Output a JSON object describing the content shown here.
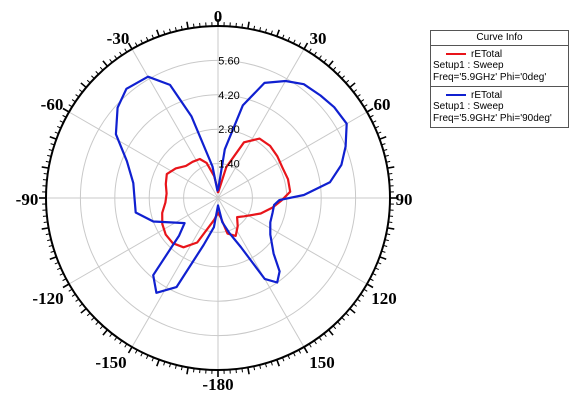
{
  "colors": {
    "series_1": "#e8141a",
    "series_2": "#1020d0",
    "grid": "#c9c9c9"
  },
  "legend": {
    "title": "Curve Info",
    "entries": [
      {
        "name": "rETotal",
        "setup": "Setup1 : Sweep",
        "freq": "Freq='5.9GHz' Phi='0deg'",
        "color": "#e8141a"
      },
      {
        "name": "rETotal",
        "setup": "Setup1 : Sweep",
        "freq": "Freq='5.9GHz' Phi='90deg'",
        "color": "#1020d0"
      }
    ]
  },
  "chart_data": {
    "type": "polar",
    "angle_ticks": [
      "0",
      "30",
      "60",
      "90",
      "120",
      "150",
      "-180",
      "-150",
      "-120",
      "-90",
      "-60",
      "-30"
    ],
    "radial_ticks": [
      "1.40",
      "2.80",
      "4.20",
      "5.60"
    ],
    "r_range": [
      0,
      7
    ],
    "grid": true,
    "legend_position": "top-right",
    "series": [
      {
        "name": "rETotal",
        "legend_text": "Freq='5.9GHz' Phi='0deg'",
        "theta_deg": [
          0,
          15,
          25,
          35,
          45,
          55,
          65,
          75,
          85,
          92,
          100,
          110,
          125,
          135,
          145,
          155,
          165,
          172,
          180,
          190,
          205,
          215,
          225,
          235,
          245,
          255,
          265,
          275,
          285,
          295,
          305,
          315,
          325,
          335,
          342,
          350,
          355
        ],
        "r": [
          0.2,
          1.3,
          2.5,
          2.95,
          3.0,
          2.95,
          2.9,
          2.95,
          2.95,
          2.6,
          2.25,
          1.85,
          1.3,
          1.1,
          1.4,
          1.7,
          1.5,
          0.8,
          0.6,
          0.9,
          2.0,
          2.45,
          2.6,
          2.6,
          2.5,
          2.35,
          2.15,
          2.1,
          2.2,
          2.3,
          2.1,
          1.85,
          1.8,
          1.75,
          1.5,
          0.9,
          0.45
        ]
      },
      {
        "name": "rETotal",
        "legend_text": "Freq='5.9GHz' Phi='90deg'",
        "theta_deg": [
          0,
          8,
          15,
          22,
          30,
          37,
          45,
          52,
          60,
          68,
          75,
          82,
          88,
          92,
          97,
          105,
          115,
          125,
          135,
          140,
          145,
          150,
          155,
          162,
          170,
          180,
          188,
          197,
          205,
          213,
          220,
          226,
          233,
          240,
          250,
          260,
          270,
          280,
          292,
          302,
          312,
          320,
          330,
          337,
          342,
          350,
          355
        ],
        "r": [
          0.3,
          2.0,
          3.9,
          5.05,
          5.5,
          5.8,
          5.9,
          6.0,
          6.05,
          5.6,
          5.2,
          4.6,
          3.5,
          2.5,
          2.3,
          2.3,
          2.35,
          2.6,
          3.2,
          3.9,
          4.2,
          3.8,
          2.2,
          1.5,
          1.0,
          0.3,
          1.2,
          2.0,
          4.0,
          4.6,
          4.1,
          2.2,
          1.7,
          2.0,
          2.8,
          3.4,
          3.4,
          3.5,
          4.0,
          4.9,
          5.5,
          5.8,
          5.7,
          5.0,
          3.5,
          1.3,
          0.3
        ]
      }
    ]
  }
}
